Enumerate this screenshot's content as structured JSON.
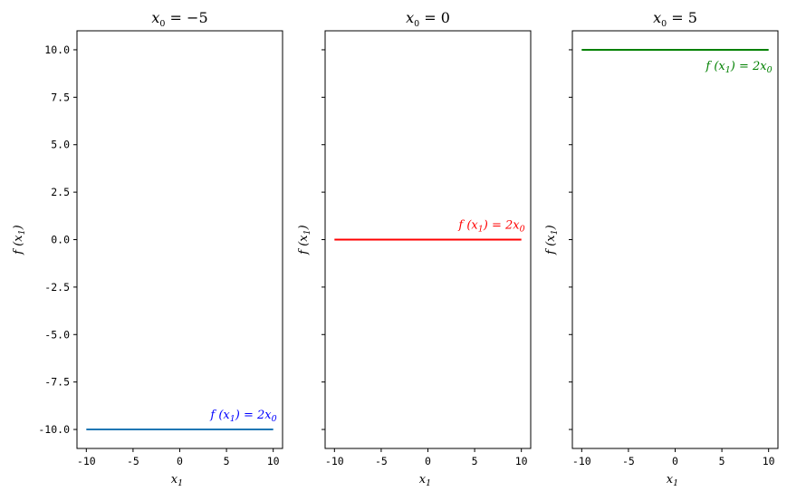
{
  "chart_data": [
    {
      "type": "line",
      "title": {
        "var": "x",
        "sub": "0",
        "rest": " = −5"
      },
      "xlabel": {
        "var": "x",
        "sub": "1"
      },
      "ylabel": {
        "var": "f (x",
        "sub": "1",
        "close": ")"
      },
      "xlim": [
        -11,
        11
      ],
      "ylim": [
        -11,
        11
      ],
      "xticks": [
        "-10",
        "-5",
        "0",
        "5",
        "10"
      ],
      "yticks": [
        "10.0",
        "7.5",
        "5.0",
        "2.5",
        "0.0",
        "-2.5",
        "-5.0",
        "-7.5",
        "-10.0"
      ],
      "show_ytick_labels": true,
      "grid": false,
      "series": [
        {
          "x": [
            -10,
            10
          ],
          "y": [
            -10,
            -10
          ],
          "color": "#1f77b4"
        }
      ],
      "annotation": {
        "pre": "f (x",
        "s1": "1",
        "mid": ") = 2x",
        "s2": "0",
        "x": 10,
        "y": -10,
        "position": "above",
        "color": "#0000ff"
      }
    },
    {
      "type": "line",
      "title": {
        "var": "x",
        "sub": "0",
        "rest": " = 0"
      },
      "xlabel": {
        "var": "x",
        "sub": "1"
      },
      "ylabel": {
        "var": "f (x",
        "sub": "1",
        "close": ")"
      },
      "xlim": [
        -11,
        11
      ],
      "ylim": [
        -11,
        11
      ],
      "xticks": [
        "-10",
        "-5",
        "0",
        "5",
        "10"
      ],
      "yticks": [
        "10.0",
        "7.5",
        "5.0",
        "2.5",
        "0.0",
        "-2.5",
        "-5.0",
        "-7.5",
        "-10.0"
      ],
      "show_ytick_labels": false,
      "grid": false,
      "series": [
        {
          "x": [
            -10,
            10
          ],
          "y": [
            0,
            0
          ],
          "color": "#ff0000"
        }
      ],
      "annotation": {
        "pre": "f (x",
        "s1": "1",
        "mid": ") = 2x",
        "s2": "0",
        "x": 10,
        "y": 0,
        "position": "above",
        "color": "#ff0000"
      }
    },
    {
      "type": "line",
      "title": {
        "var": "x",
        "sub": "0",
        "rest": " = 5"
      },
      "xlabel": {
        "var": "x",
        "sub": "1"
      },
      "ylabel": {
        "var": "f (x",
        "sub": "1",
        "close": ")"
      },
      "xlim": [
        -11,
        11
      ],
      "ylim": [
        -11,
        11
      ],
      "xticks": [
        "-10",
        "-5",
        "0",
        "5",
        "10"
      ],
      "yticks": [
        "10.0",
        "7.5",
        "5.0",
        "2.5",
        "0.0",
        "-2.5",
        "-5.0",
        "-7.5",
        "-10.0"
      ],
      "show_ytick_labels": false,
      "grid": false,
      "series": [
        {
          "x": [
            -10,
            10
          ],
          "y": [
            10,
            10
          ],
          "color": "#008000"
        }
      ],
      "annotation": {
        "pre": "f (x",
        "s1": "1",
        "mid": ") = 2x",
        "s2": "0",
        "x": 10,
        "y": 10,
        "position": "below",
        "color": "#008000"
      }
    }
  ]
}
